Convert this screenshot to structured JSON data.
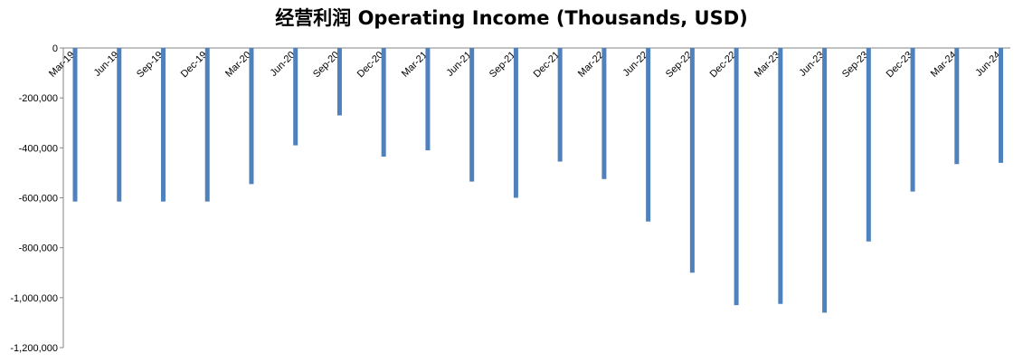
{
  "chart_data": {
    "type": "bar",
    "title": "经营利润 Operating Income (Thousands, USD)",
    "xlabel": "",
    "ylabel": "",
    "categories": [
      "Mar-19",
      "Jun-19",
      "Sep-19",
      "Dec-19",
      "Mar-20",
      "Jun-20",
      "Sep-20",
      "Dec-20",
      "Mar-21",
      "Jun-21",
      "Sep-21",
      "Dec-21",
      "Mar-22",
      "Jun-22",
      "Sep-22",
      "Dec-22",
      "Mar-23",
      "Jun-23",
      "Sep-23",
      "Dec-23",
      "Mar-24",
      "Jun-24"
    ],
    "values": [
      -615000,
      -615000,
      -615000,
      -615000,
      -545000,
      -390000,
      -270000,
      -435000,
      -410000,
      -535000,
      -600000,
      -455000,
      -525000,
      -695000,
      -900000,
      -1030000,
      -1025000,
      -1060000,
      -775000,
      -575000,
      -465000,
      -460000
    ],
    "ylim": [
      -1200000,
      0
    ],
    "yticks": [
      0,
      -200000,
      -400000,
      -600000,
      -800000,
      -1000000,
      -1200000
    ],
    "ytick_labels": [
      "0",
      "-200,000",
      "-400,000",
      "-600,000",
      "-800,000",
      "-1,000,000",
      "-1,200,000"
    ],
    "bar_color": "#4F81BD",
    "grid": false,
    "legend": "none"
  }
}
